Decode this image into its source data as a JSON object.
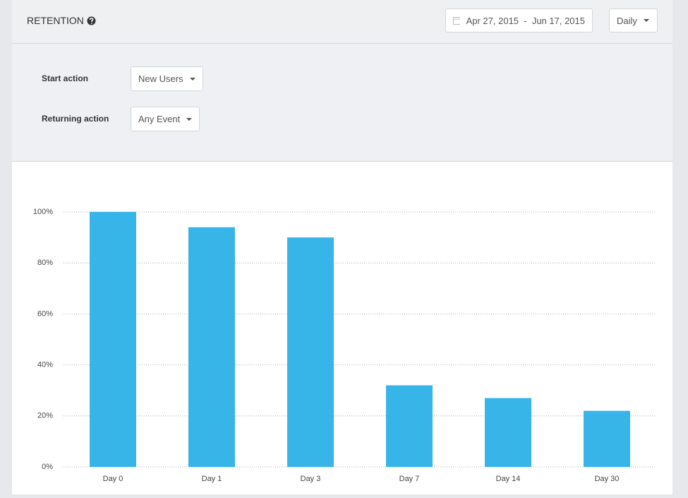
{
  "header": {
    "title": "RETENTION",
    "date_range": "Apr 27, 2015  -  Jun 17, 2015",
    "granularity": "Daily"
  },
  "filters": [
    {
      "label": "Start action",
      "value": "New Users"
    },
    {
      "label": "Returning action",
      "value": "Any Event"
    }
  ],
  "chart_data": {
    "type": "bar",
    "categories": [
      "Day 0",
      "Day 1",
      "Day 3",
      "Day 7",
      "Day 14",
      "Day 30"
    ],
    "values": [
      100,
      94,
      90,
      32,
      27,
      22
    ],
    "color": "#38b5e8",
    "ylim": [
      0,
      100
    ],
    "yticks": [
      {
        "value": 0,
        "label": "0%"
      },
      {
        "value": 20,
        "label": "20%"
      },
      {
        "value": 40,
        "label": "40%"
      },
      {
        "value": 60,
        "label": "60%"
      },
      {
        "value": 80,
        "label": "80%"
      },
      {
        "value": 100,
        "label": "100%"
      }
    ],
    "grid": true
  }
}
